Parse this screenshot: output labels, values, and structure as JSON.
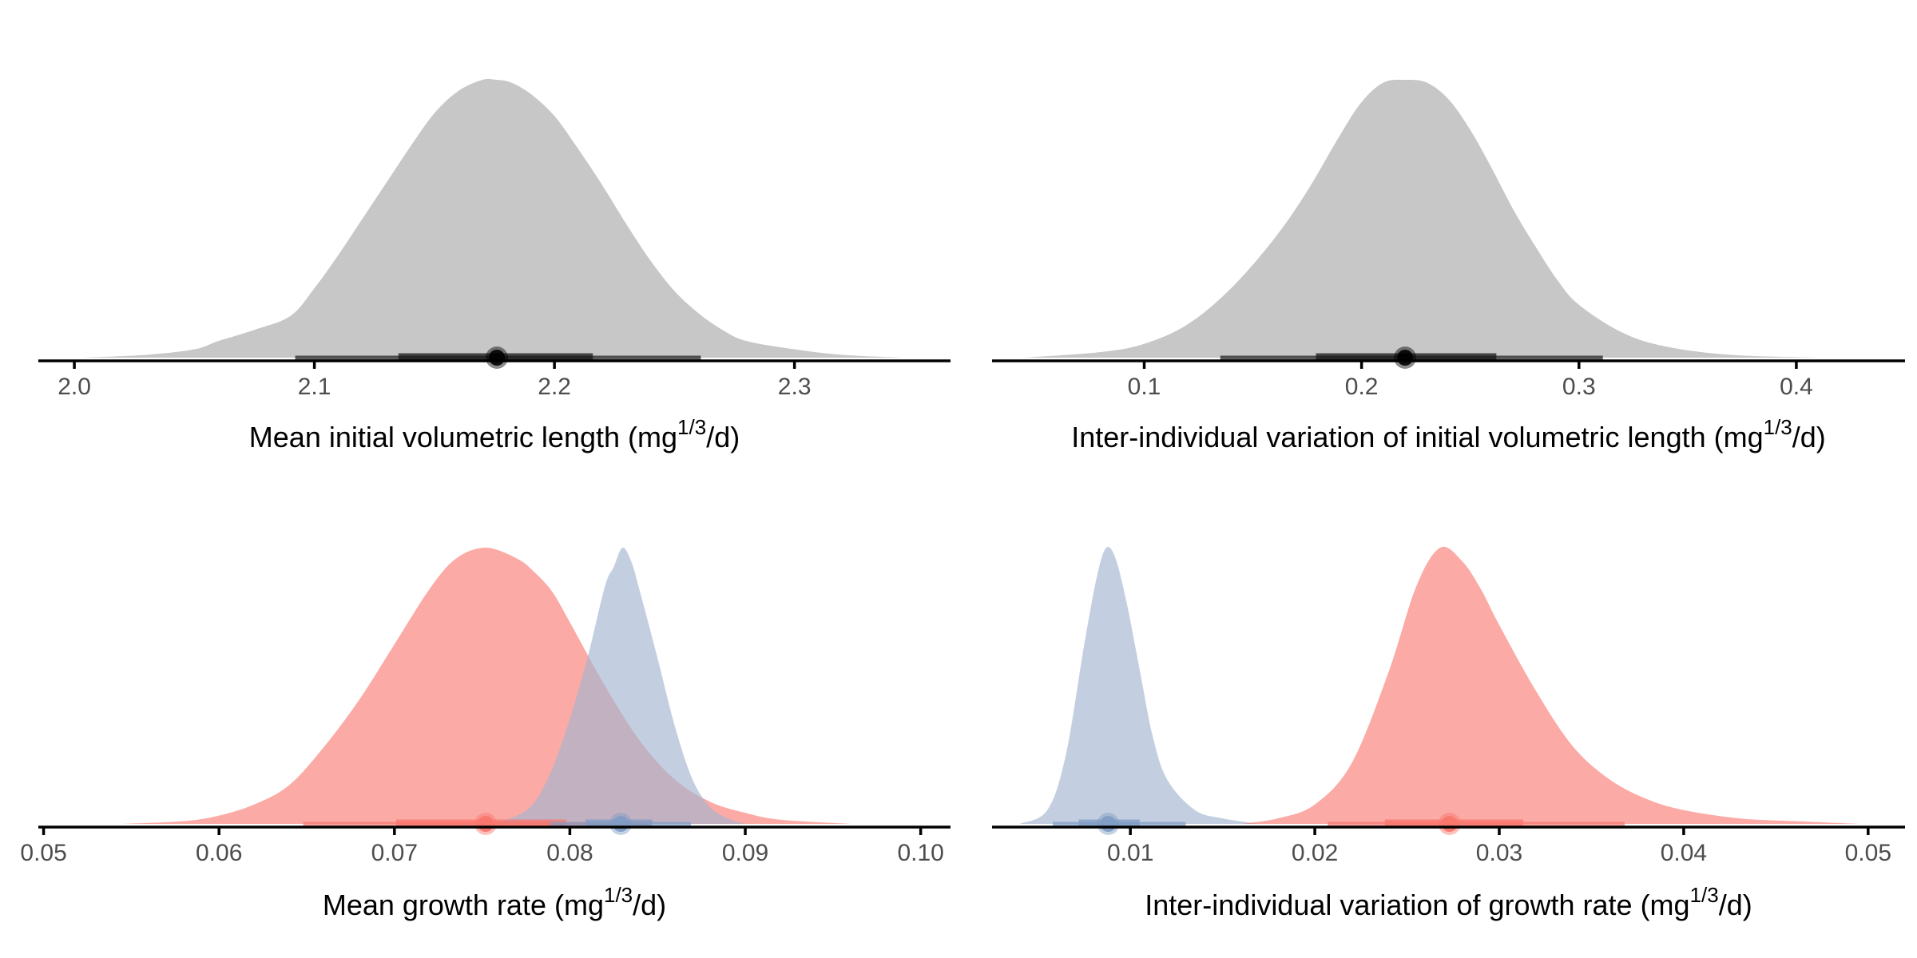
{
  "chart_data": [
    {
      "type": "area",
      "subtype": "posterior-density-halfeye",
      "xlabel": "Mean initial volumetric length",
      "unit": {
        "base": "mg",
        "superscript": "1/3",
        "tail": "/d"
      },
      "xlim": [
        1.985,
        2.365
      ],
      "xticks": [
        2.0,
        2.1,
        2.2,
        2.3
      ],
      "tick_labels": [
        "2.0",
        "2.1",
        "2.2",
        "2.3"
      ],
      "series": [
        {
          "color": "#bdbdbd",
          "point_color": "#000000",
          "interval_color": "#1a1a1a",
          "opacity": 0.85,
          "density_x": [
            2.003,
            2.03,
            2.05,
            2.06,
            2.075,
            2.09,
            2.1,
            2.11,
            2.12,
            2.13,
            2.14,
            2.15,
            2.16,
            2.17,
            2.176,
            2.182,
            2.19,
            2.2,
            2.21,
            2.22,
            2.23,
            2.24,
            2.25,
            2.26,
            2.27,
            2.28,
            2.3,
            2.32,
            2.345
          ],
          "density_y": [
            0.0,
            0.01,
            0.03,
            0.06,
            0.1,
            0.15,
            0.25,
            0.37,
            0.5,
            0.63,
            0.76,
            0.88,
            0.96,
            1.0,
            1.0,
            0.99,
            0.95,
            0.87,
            0.75,
            0.62,
            0.48,
            0.35,
            0.24,
            0.16,
            0.1,
            0.06,
            0.03,
            0.01,
            0.0
          ],
          "point": 2.176,
          "inner_interval": [
            2.135,
            2.216
          ],
          "outer_interval": [
            2.092,
            2.261
          ]
        }
      ]
    },
    {
      "type": "area",
      "subtype": "posterior-density-halfeye",
      "xlabel": "Inter-individual variation of initial volumetric length",
      "unit": {
        "base": "mg",
        "superscript": "1/3",
        "tail": "/d"
      },
      "xlim": [
        0.03,
        0.45
      ],
      "xticks": [
        0.1,
        0.2,
        0.3,
        0.4
      ],
      "tick_labels": [
        "0.1",
        "0.2",
        "0.3",
        "0.4"
      ],
      "series": [
        {
          "color": "#bdbdbd",
          "point_color": "#000000",
          "interval_color": "#1a1a1a",
          "opacity": 0.85,
          "density_x": [
            0.045,
            0.08,
            0.1,
            0.12,
            0.14,
            0.16,
            0.175,
            0.19,
            0.2,
            0.21,
            0.22,
            0.23,
            0.24,
            0.25,
            0.26,
            0.27,
            0.28,
            0.29,
            0.3,
            0.32,
            0.34,
            0.37,
            0.41
          ],
          "density_y": [
            0.0,
            0.02,
            0.05,
            0.12,
            0.25,
            0.43,
            0.6,
            0.8,
            0.92,
            0.99,
            1.0,
            0.99,
            0.93,
            0.82,
            0.68,
            0.53,
            0.4,
            0.28,
            0.19,
            0.09,
            0.04,
            0.01,
            0.0
          ],
          "point": 0.22,
          "inner_interval": [
            0.179,
            0.262
          ],
          "outer_interval": [
            0.135,
            0.311
          ]
        }
      ]
    },
    {
      "type": "area",
      "subtype": "posterior-density-halfeye",
      "xlabel": "Mean growth rate",
      "unit": {
        "base": "mg",
        "superscript": "1/3",
        "tail": "/d"
      },
      "xlim": [
        0.0497,
        0.1017
      ],
      "xticks": [
        0.05,
        0.06,
        0.07,
        0.08,
        0.09,
        0.1
      ],
      "tick_labels": [
        "0.05",
        "0.06",
        "0.07",
        "0.08",
        "0.09",
        "0.10"
      ],
      "series": [
        {
          "color": "#f8766d",
          "point_color": "#f8766d",
          "interval_color": "#f8766d",
          "opacity": 0.62,
          "density_x": [
            0.0545,
            0.058,
            0.06,
            0.062,
            0.064,
            0.066,
            0.068,
            0.07,
            0.072,
            0.0735,
            0.0752,
            0.077,
            0.078,
            0.079,
            0.08,
            0.082,
            0.084,
            0.086,
            0.088,
            0.09,
            0.092,
            0.096
          ],
          "density_y": [
            0.0,
            0.01,
            0.03,
            0.07,
            0.14,
            0.28,
            0.45,
            0.65,
            0.85,
            0.96,
            1.0,
            0.96,
            0.91,
            0.84,
            0.73,
            0.5,
            0.3,
            0.16,
            0.08,
            0.04,
            0.015,
            0.0
          ],
          "point": 0.0752,
          "inner_interval": [
            0.0701,
            0.0798
          ],
          "outer_interval": [
            0.0648,
            0.0845
          ]
        },
        {
          "color": "#a3b5d0",
          "point_color": "#7f9cc4",
          "interval_color": "#7f9cc4",
          "opacity": 0.65,
          "density_x": [
            0.0755,
            0.077,
            0.078,
            0.079,
            0.08,
            0.081,
            0.082,
            0.0825,
            0.083,
            0.0835,
            0.084,
            0.085,
            0.086,
            0.087,
            0.088,
            0.089,
            0.09
          ],
          "density_y": [
            0.0,
            0.03,
            0.08,
            0.2,
            0.38,
            0.6,
            0.86,
            0.93,
            1.0,
            0.95,
            0.84,
            0.6,
            0.35,
            0.16,
            0.06,
            0.02,
            0.0
          ],
          "point": 0.0829,
          "inner_interval": [
            0.0809,
            0.0847
          ],
          "outer_interval": [
            0.0789,
            0.0869
          ]
        }
      ]
    },
    {
      "type": "area",
      "subtype": "posterior-density-halfeye",
      "xlabel": "Inter-individual variation of growth rate",
      "unit": {
        "base": "mg",
        "superscript": "1/3",
        "tail": "/d"
      },
      "xlim": [
        0.0025,
        0.052
      ],
      "xticks": [
        0.01,
        0.02,
        0.03,
        0.04,
        0.05
      ],
      "tick_labels": [
        "0.01",
        "0.02",
        "0.03",
        "0.04",
        "0.05"
      ],
      "series": [
        {
          "color": "#a3b5d0",
          "point_color": "#7f9cc4",
          "interval_color": "#7f9cc4",
          "opacity": 0.65,
          "density_x": [
            0.004,
            0.0055,
            0.0065,
            0.0075,
            0.0082,
            0.0087,
            0.0092,
            0.0098,
            0.0105,
            0.0112,
            0.012,
            0.0135,
            0.015,
            0.017
          ],
          "density_y": [
            0.0,
            0.05,
            0.25,
            0.65,
            0.9,
            1.0,
            0.96,
            0.8,
            0.56,
            0.32,
            0.16,
            0.05,
            0.02,
            0.0
          ],
          "point": 0.0088,
          "inner_interval": [
            0.0072,
            0.0105
          ],
          "outer_interval": [
            0.0058,
            0.013
          ]
        },
        {
          "color": "#f8766d",
          "point_color": "#f8766d",
          "interval_color": "#f8766d",
          "opacity": 0.62,
          "density_x": [
            0.016,
            0.018,
            0.02,
            0.022,
            0.024,
            0.0255,
            0.0268,
            0.028,
            0.029,
            0.03,
            0.032,
            0.034,
            0.036,
            0.038,
            0.04,
            0.043,
            0.046,
            0.0495
          ],
          "density_y": [
            0.0,
            0.02,
            0.07,
            0.22,
            0.55,
            0.86,
            1.0,
            0.95,
            0.85,
            0.72,
            0.48,
            0.28,
            0.16,
            0.09,
            0.05,
            0.02,
            0.01,
            0.0
          ],
          "point": 0.0273,
          "inner_interval": [
            0.0238,
            0.0313
          ],
          "outer_interval": [
            0.0207,
            0.0368
          ]
        }
      ]
    }
  ]
}
